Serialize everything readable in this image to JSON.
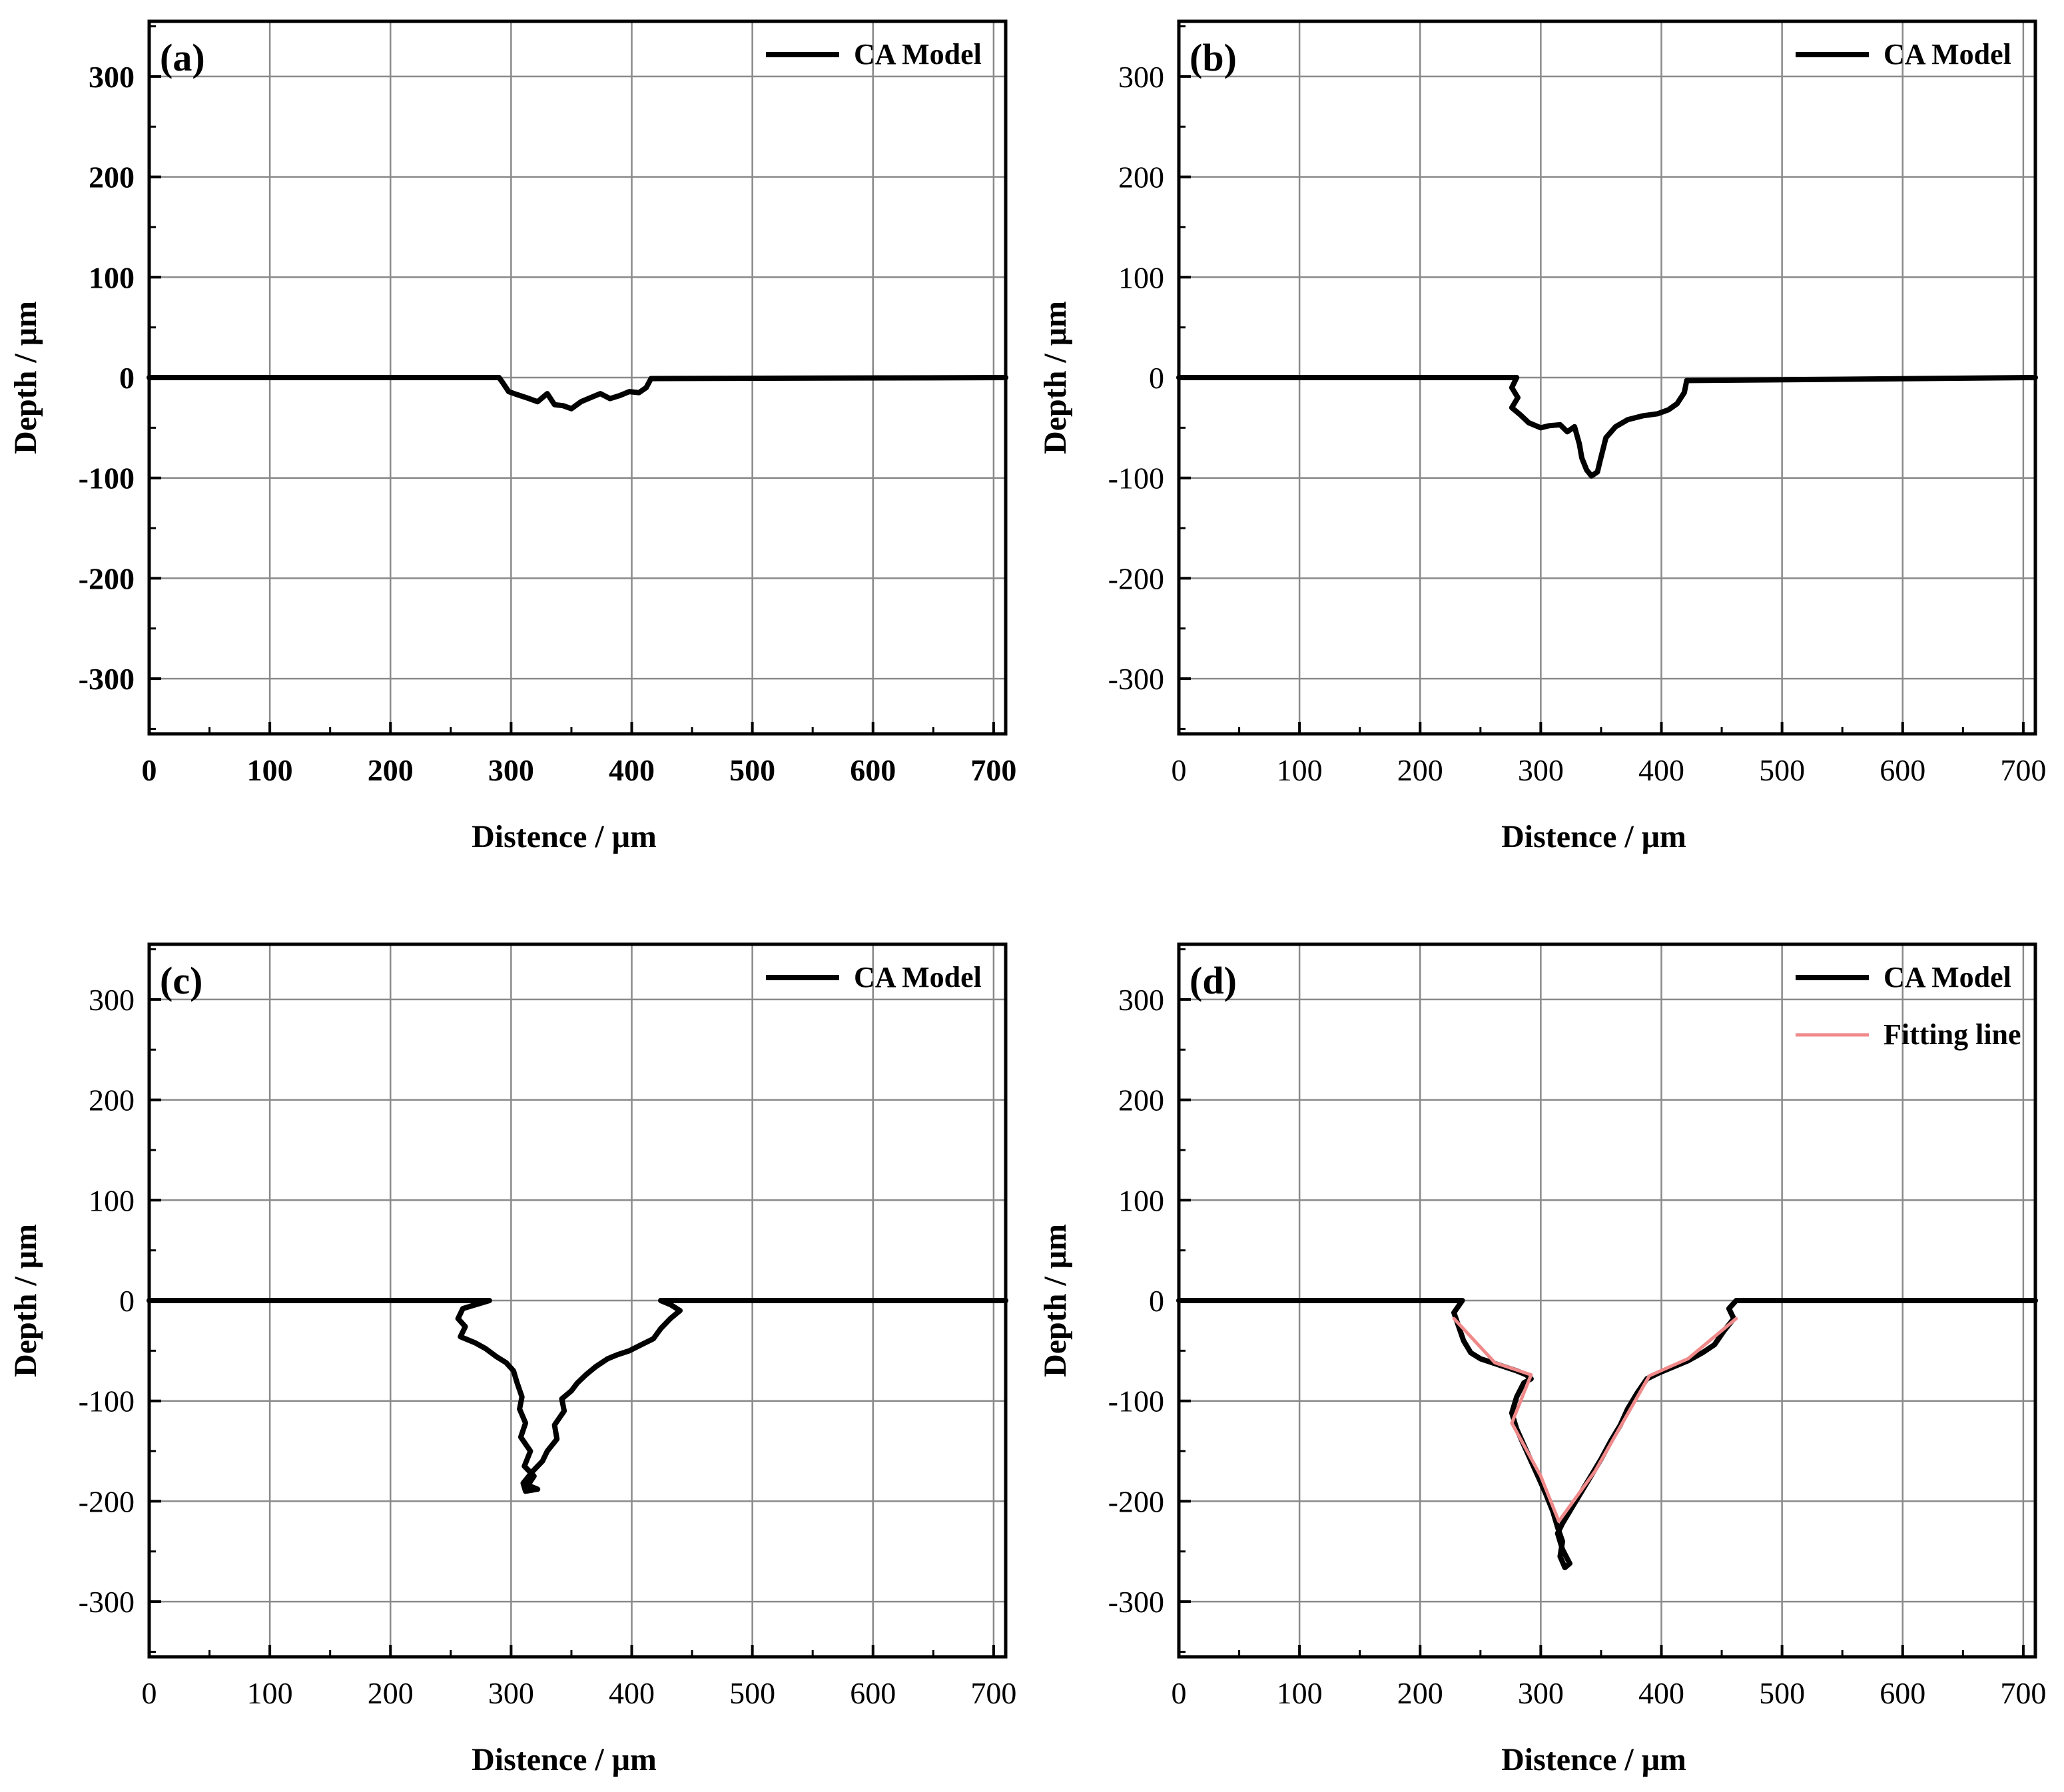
{
  "colors": {
    "model": "#000000",
    "fit": "#f08a8a",
    "grid": "#8a8a8a",
    "axis": "#000000"
  },
  "chart_data": [
    {
      "type": "line",
      "panel_label": "(a)",
      "xlabel": "Distence / μm",
      "ylabel": "Depth / μm",
      "xlim": [
        0,
        710
      ],
      "ylim": [
        -355,
        355
      ],
      "xticks": [
        "0",
        "100",
        "200",
        "300",
        "400",
        "500",
        "600",
        "700"
      ],
      "yticks": [
        "300",
        "200",
        "100",
        "0",
        "-100",
        "-200",
        "-300"
      ],
      "grid": true,
      "legend": "top-right",
      "tick_bold": true,
      "series": [
        {
          "name": "CA Model",
          "style": "model",
          "x": [
            0,
            290,
            293,
            298,
            305,
            315,
            322,
            330,
            336,
            343,
            350,
            358,
            366,
            374,
            382,
            390,
            398,
            406,
            412,
            416,
            710
          ],
          "y": [
            0,
            0,
            -5,
            -14,
            -17,
            -21,
            -24,
            -16,
            -27,
            -28,
            -31,
            -24,
            -20,
            -16,
            -21,
            -18,
            -14,
            -15,
            -10,
            -1,
            0
          ]
        }
      ]
    },
    {
      "type": "line",
      "panel_label": "(b)",
      "xlabel": "Distence / μm",
      "ylabel": "Depth / μm",
      "xlim": [
        0,
        710
      ],
      "ylim": [
        -355,
        355
      ],
      "xticks": [
        "0",
        "100",
        "200",
        "300",
        "400",
        "500",
        "600",
        "700"
      ],
      "yticks": [
        "300",
        "200",
        "100",
        "0",
        "-100",
        "-200",
        "-300"
      ],
      "grid": true,
      "legend": "top-right",
      "tick_bold": false,
      "series": [
        {
          "name": "CA Model",
          "style": "model",
          "x": [
            0,
            280,
            276,
            281,
            276,
            283,
            290,
            300,
            307,
            316,
            322,
            328,
            332,
            334,
            338,
            342,
            347,
            349,
            354,
            362,
            372,
            385,
            397,
            406,
            413,
            419,
            421,
            710
          ],
          "y": [
            0,
            0,
            -10,
            -20,
            -30,
            -37,
            -45,
            -50,
            -48,
            -47,
            -54,
            -49,
            -66,
            -80,
            -92,
            -98,
            -94,
            -84,
            -60,
            -49,
            -42,
            -38,
            -36,
            -32,
            -26,
            -15,
            -3,
            0
          ]
        }
      ]
    },
    {
      "type": "line",
      "panel_label": "(c)",
      "xlabel": "Distence / μm",
      "ylabel": "Depth / μm",
      "xlim": [
        0,
        710
      ],
      "ylim": [
        -355,
        355
      ],
      "xticks": [
        "0",
        "100",
        "200",
        "300",
        "400",
        "500",
        "600",
        "700"
      ],
      "yticks": [
        "300",
        "200",
        "100",
        "0",
        "-100",
        "-200",
        "-300"
      ],
      "grid": true,
      "legend": "top-right",
      "tick_bold": false,
      "series": [
        {
          "name": "CA Model",
          "style": "model",
          "x": [
            0,
            282,
            260,
            256,
            262,
            258,
            270,
            279,
            288,
            296,
            302,
            305,
            309,
            307,
            312,
            308,
            316,
            311,
            319,
            314,
            322,
            312,
            310,
            318,
            326,
            330,
            338,
            336,
            344,
            342,
            350,
            355,
            362,
            370,
            380,
            388,
            398,
            408,
            418,
            424,
            432,
            440,
            432,
            424,
            710
          ],
          "y": [
            0,
            0,
            -8,
            -18,
            -26,
            -36,
            -42,
            -48,
            -56,
            -62,
            -70,
            -82,
            -96,
            -108,
            -122,
            -136,
            -150,
            -165,
            -175,
            -184,
            -188,
            -190,
            -182,
            -170,
            -160,
            -150,
            -138,
            -124,
            -110,
            -98,
            -90,
            -82,
            -74,
            -66,
            -58,
            -54,
            -50,
            -44,
            -38,
            -28,
            -18,
            -10,
            -4,
            0,
            0
          ]
        }
      ]
    },
    {
      "type": "line",
      "panel_label": "(d)",
      "xlabel": "Distence / μm",
      "ylabel": "Depth / μm",
      "xlim": [
        0,
        710
      ],
      "ylim": [
        -355,
        355
      ],
      "xticks": [
        "0",
        "100",
        "200",
        "300",
        "400",
        "500",
        "600",
        "700"
      ],
      "yticks": [
        "300",
        "200",
        "100",
        "0",
        "-100",
        "-200",
        "-300"
      ],
      "grid": true,
      "legend": "top-right",
      "tick_bold": false,
      "series": [
        {
          "name": "CA Model",
          "style": "model",
          "x": [
            0,
            235,
            228,
            232,
            236,
            242,
            250,
            260,
            270,
            280,
            288,
            292,
            286,
            280,
            276,
            280,
            286,
            292,
            298,
            304,
            310,
            314,
            318,
            316,
            320,
            324,
            318,
            314,
            318,
            326,
            334,
            342,
            350,
            358,
            366,
            372,
            380,
            388,
            398,
            410,
            422,
            434,
            444,
            452,
            460,
            456,
            462,
            710
          ],
          "y": [
            0,
            0,
            -12,
            -26,
            -40,
            -52,
            -58,
            -62,
            -66,
            -70,
            -74,
            -78,
            -82,
            -96,
            -112,
            -128,
            -144,
            -160,
            -176,
            -192,
            -210,
            -226,
            -240,
            -255,
            -266,
            -262,
            -248,
            -232,
            -222,
            -206,
            -190,
            -174,
            -158,
            -140,
            -124,
            -108,
            -92,
            -78,
            -72,
            -66,
            -60,
            -52,
            -44,
            -30,
            -18,
            -8,
            0,
            0
          ]
        },
        {
          "name": "Fitting line",
          "style": "fit",
          "x": [
            228,
            262,
            292,
            276,
            300,
            315,
            345,
            390,
            422,
            462
          ],
          "y": [
            -18,
            -62,
            -74,
            -122,
            -175,
            -220,
            -170,
            -75,
            -58,
            -18
          ]
        }
      ]
    }
  ]
}
